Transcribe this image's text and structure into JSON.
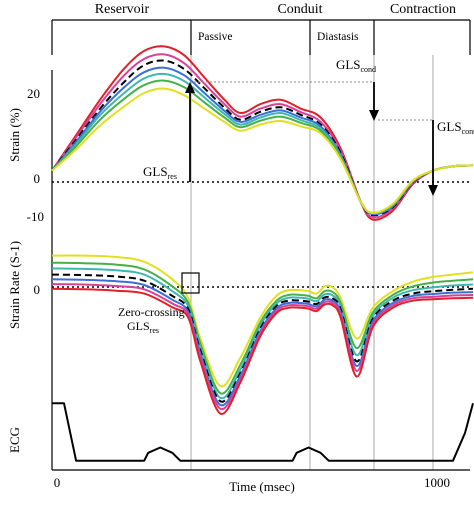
{
  "chart_data": [
    {
      "type": "line",
      "panel": "strain",
      "ylabel": "Strain (%)",
      "yticks": [
        "20",
        "0",
        "-10"
      ],
      "ylim": [
        -13,
        28
      ],
      "xlim": [
        0,
        1050
      ],
      "annotations": {
        "gls_res": {
          "base": "GLS",
          "sub": "res"
        },
        "gls_cond": {
          "base": "GLS",
          "sub": "cond"
        },
        "gls_cont": {
          "base": "GLS",
          "sub": "cont"
        }
      },
      "series": [
        {
          "color": "#e0202a",
          "x": [
            0,
            60,
            120,
            180,
            230,
            280,
            330,
            380,
            430,
            470,
            520,
            570,
            620,
            670,
            720,
            770,
            800,
            850,
            900,
            950,
            1000,
            1050
          ],
          "values": [
            -1,
            7,
            15,
            22,
            26,
            27,
            25,
            20,
            15,
            12,
            14,
            15,
            13,
            11,
            4,
            -8,
            -12,
            -10,
            -4,
            -1,
            0,
            0.2
          ]
        },
        {
          "color": "#d8409a",
          "x": [
            0,
            60,
            120,
            180,
            230,
            280,
            330,
            380,
            430,
            470,
            520,
            570,
            620,
            670,
            720,
            770,
            800,
            850,
            900,
            950,
            1000,
            1050
          ],
          "values": [
            -1,
            6.5,
            14,
            20.5,
            24.2,
            25.2,
            23.2,
            18.6,
            14,
            11.2,
            13,
            14,
            12.2,
            10,
            3.5,
            -8,
            -11.5,
            -9.5,
            -3.8,
            -1,
            0,
            0.2
          ]
        },
        {
          "color": "#000000",
          "dashed": true,
          "x": [
            0,
            60,
            120,
            180,
            230,
            280,
            330,
            380,
            430,
            470,
            520,
            570,
            620,
            670,
            720,
            770,
            800,
            850,
            900,
            950,
            1000,
            1050
          ],
          "values": [
            -1,
            6,
            13,
            19,
            22.8,
            23.8,
            21.9,
            17.6,
            13.2,
            10.5,
            12.3,
            13.3,
            11.6,
            9.4,
            3,
            -8,
            -11,
            -9.2,
            -3.6,
            -1,
            0,
            0.2
          ]
        },
        {
          "color": "#3a6fd8",
          "x": [
            0,
            60,
            120,
            180,
            230,
            280,
            330,
            380,
            430,
            470,
            520,
            570,
            620,
            670,
            720,
            770,
            800,
            850,
            900,
            950,
            1000,
            1050
          ],
          "values": [
            -1,
            5.5,
            12.3,
            17.8,
            21.2,
            22.2,
            20.5,
            16.5,
            12.5,
            10,
            11.6,
            12.6,
            11,
            9,
            2.6,
            -8,
            -10.8,
            -9,
            -3.5,
            -1,
            0,
            0.2
          ]
        },
        {
          "color": "#3cb8b0",
          "x": [
            0,
            60,
            120,
            180,
            230,
            280,
            330,
            380,
            430,
            470,
            520,
            570,
            620,
            670,
            720,
            770,
            800,
            850,
            900,
            950,
            1000,
            1050
          ],
          "values": [
            -1,
            5,
            11.5,
            16.5,
            19.8,
            20.8,
            19.2,
            15.5,
            11.8,
            9.4,
            11,
            12,
            10.4,
            8.5,
            2.3,
            -8,
            -10.6,
            -8.8,
            -3.4,
            -1,
            0,
            0.2
          ]
        },
        {
          "color": "#48b048",
          "x": [
            0,
            60,
            120,
            180,
            230,
            280,
            330,
            380,
            430,
            470,
            520,
            570,
            620,
            670,
            720,
            770,
            800,
            850,
            900,
            950,
            1000,
            1050
          ],
          "values": [
            -1,
            4.5,
            10.5,
            15.2,
            18.3,
            19.3,
            17.8,
            14.4,
            11,
            8.8,
            10.3,
            11.2,
            9.8,
            8,
            2,
            -8,
            -10.5,
            -8.6,
            -3.3,
            -1,
            0,
            0.2
          ]
        },
        {
          "color": "#e0e020",
          "x": [
            0,
            60,
            120,
            180,
            230,
            280,
            330,
            380,
            430,
            470,
            520,
            570,
            620,
            670,
            720,
            770,
            800,
            850,
            900,
            950,
            1000,
            1050
          ],
          "values": [
            -1,
            3.8,
            9.2,
            13.5,
            16.5,
            17.5,
            16,
            13,
            10,
            8,
            9.4,
            10.2,
            9,
            7.4,
            1.6,
            -8,
            -10.5,
            -8.5,
            -3.2,
            -1,
            0,
            0.2
          ]
        }
      ]
    },
    {
      "type": "line",
      "panel": "strain_rate",
      "ylabel": "Strain Rate (S-1)",
      "yticks": [
        "0"
      ],
      "ylim": [
        -3,
        1.3
      ],
      "xlim": [
        0,
        1050
      ],
      "annotations": {
        "zero_crossing": {
          "line1": "Zero-crossing",
          "base": "GLS",
          "sub": "res"
        }
      },
      "series": [
        {
          "color": "#e0e020",
          "x": [
            0,
            80,
            160,
            230,
            300,
            340,
            370,
            420,
            470,
            520,
            560,
            590,
            620,
            640,
            660,
            680,
            700,
            720,
            760,
            800,
            850,
            900,
            950,
            1000,
            1050
          ],
          "values": [
            0.95,
            0.95,
            0.92,
            0.82,
            0.45,
            0.05,
            -0.8,
            -1.8,
            -1.2,
            -0.35,
            0.1,
            0.22,
            0.22,
            0.2,
            0.15,
            0.3,
            0.28,
            0.05,
            -0.8,
            -0.15,
            0.2,
            0.4,
            0.5,
            0.55,
            0.6
          ]
        },
        {
          "color": "#48b048",
          "x": [
            0,
            80,
            160,
            230,
            300,
            340,
            370,
            420,
            470,
            520,
            560,
            590,
            620,
            640,
            660,
            680,
            700,
            720,
            760,
            800,
            850,
            900,
            950,
            1000,
            1050
          ],
          "values": [
            0.8,
            0.79,
            0.76,
            0.66,
            0.3,
            -0.05,
            -0.9,
            -1.95,
            -1.35,
            -0.45,
            0,
            0.12,
            0.12,
            0.1,
            0.05,
            0.2,
            0.18,
            -0.05,
            -1,
            -0.25,
            0.12,
            0.3,
            0.38,
            0.42,
            0.45
          ]
        },
        {
          "color": "#3cb8b0",
          "x": [
            0,
            80,
            160,
            230,
            300,
            340,
            370,
            420,
            470,
            520,
            560,
            590,
            620,
            640,
            660,
            680,
            700,
            720,
            760,
            800,
            850,
            900,
            950,
            1000,
            1050
          ],
          "values": [
            0.68,
            0.67,
            0.64,
            0.55,
            0.2,
            -0.12,
            -0.98,
            -2.05,
            -1.45,
            -0.52,
            -0.06,
            0.06,
            0.06,
            0.04,
            -0.01,
            0.13,
            0.11,
            -0.12,
            -1.15,
            -0.32,
            0.06,
            0.22,
            0.28,
            0.32,
            0.34
          ]
        },
        {
          "color": "#000000",
          "dashed": true,
          "x": [
            0,
            80,
            160,
            230,
            300,
            340,
            370,
            420,
            470,
            520,
            560,
            590,
            620,
            640,
            660,
            680,
            700,
            720,
            760,
            800,
            850,
            900,
            950,
            1000,
            1050
          ],
          "values": [
            0.55,
            0.54,
            0.51,
            0.42,
            0.1,
            -0.18,
            -1.05,
            -2.12,
            -1.52,
            -0.58,
            -0.11,
            0,
            0,
            -0.02,
            -0.07,
            0.07,
            0.05,
            -0.18,
            -1.28,
            -0.38,
            0,
            0.15,
            0.2,
            0.23,
            0.25
          ]
        },
        {
          "color": "#3a6fd8",
          "x": [
            0,
            80,
            160,
            230,
            300,
            340,
            370,
            420,
            470,
            520,
            560,
            590,
            620,
            640,
            660,
            680,
            700,
            720,
            760,
            800,
            850,
            900,
            950,
            1000,
            1050
          ],
          "values": [
            0.45,
            0.44,
            0.41,
            0.33,
            0.02,
            -0.24,
            -1.12,
            -2.2,
            -1.58,
            -0.63,
            -0.16,
            -0.05,
            -0.05,
            -0.07,
            -0.12,
            0.02,
            0,
            -0.24,
            -1.38,
            -0.44,
            -0.05,
            0.1,
            0.14,
            0.17,
            0.18
          ]
        },
        {
          "color": "#d8409a",
          "x": [
            0,
            80,
            160,
            230,
            300,
            340,
            370,
            420,
            470,
            520,
            560,
            590,
            620,
            640,
            660,
            680,
            700,
            720,
            760,
            800,
            850,
            900,
            950,
            1000,
            1050
          ],
          "values": [
            0.35,
            0.34,
            0.31,
            0.24,
            -0.06,
            -0.3,
            -1.2,
            -2.28,
            -1.65,
            -0.68,
            -0.21,
            -0.1,
            -0.1,
            -0.12,
            -0.17,
            -0.03,
            -0.05,
            -0.3,
            -1.48,
            -0.5,
            -0.1,
            0.05,
            0.08,
            0.11,
            0.12
          ]
        },
        {
          "color": "#e0202a",
          "x": [
            0,
            80,
            160,
            230,
            300,
            340,
            370,
            420,
            470,
            520,
            560,
            590,
            620,
            640,
            660,
            680,
            700,
            720,
            760,
            800,
            850,
            900,
            950,
            1000,
            1050
          ],
          "values": [
            0.25,
            0.24,
            0.21,
            0.15,
            -0.14,
            -0.36,
            -1.28,
            -2.38,
            -1.72,
            -0.74,
            -0.26,
            -0.15,
            -0.15,
            -0.17,
            -0.22,
            -0.08,
            -0.1,
            -0.36,
            -1.6,
            -0.56,
            -0.15,
            0,
            0.03,
            0.05,
            0.06
          ]
        }
      ]
    },
    {
      "type": "line",
      "panel": "ecg",
      "ylabel": "ECG",
      "xlabel": "Time (msec)",
      "xticks": [
        "0",
        "1000"
      ],
      "xlim": [
        0,
        1050
      ],
      "ylim": [
        0,
        1
      ],
      "series": [
        {
          "color": "#000000",
          "x": [
            0,
            30,
            60,
            200,
            230,
            240,
            270,
            300,
            320,
            570,
            600,
            610,
            640,
            670,
            690,
            930,
            1000,
            1030,
            1050
          ],
          "values": [
            0.95,
            0.95,
            0.08,
            0.08,
            0.08,
            0.2,
            0.28,
            0.2,
            0.08,
            0.08,
            0.08,
            0.2,
            0.28,
            0.2,
            0.08,
            0.08,
            0.08,
            0.5,
            0.95
          ]
        }
      ]
    }
  ],
  "phases": {
    "top": [
      "Reservoir",
      "Conduit",
      "Contraction"
    ],
    "sub": [
      "Passive",
      "Diastasis"
    ]
  }
}
